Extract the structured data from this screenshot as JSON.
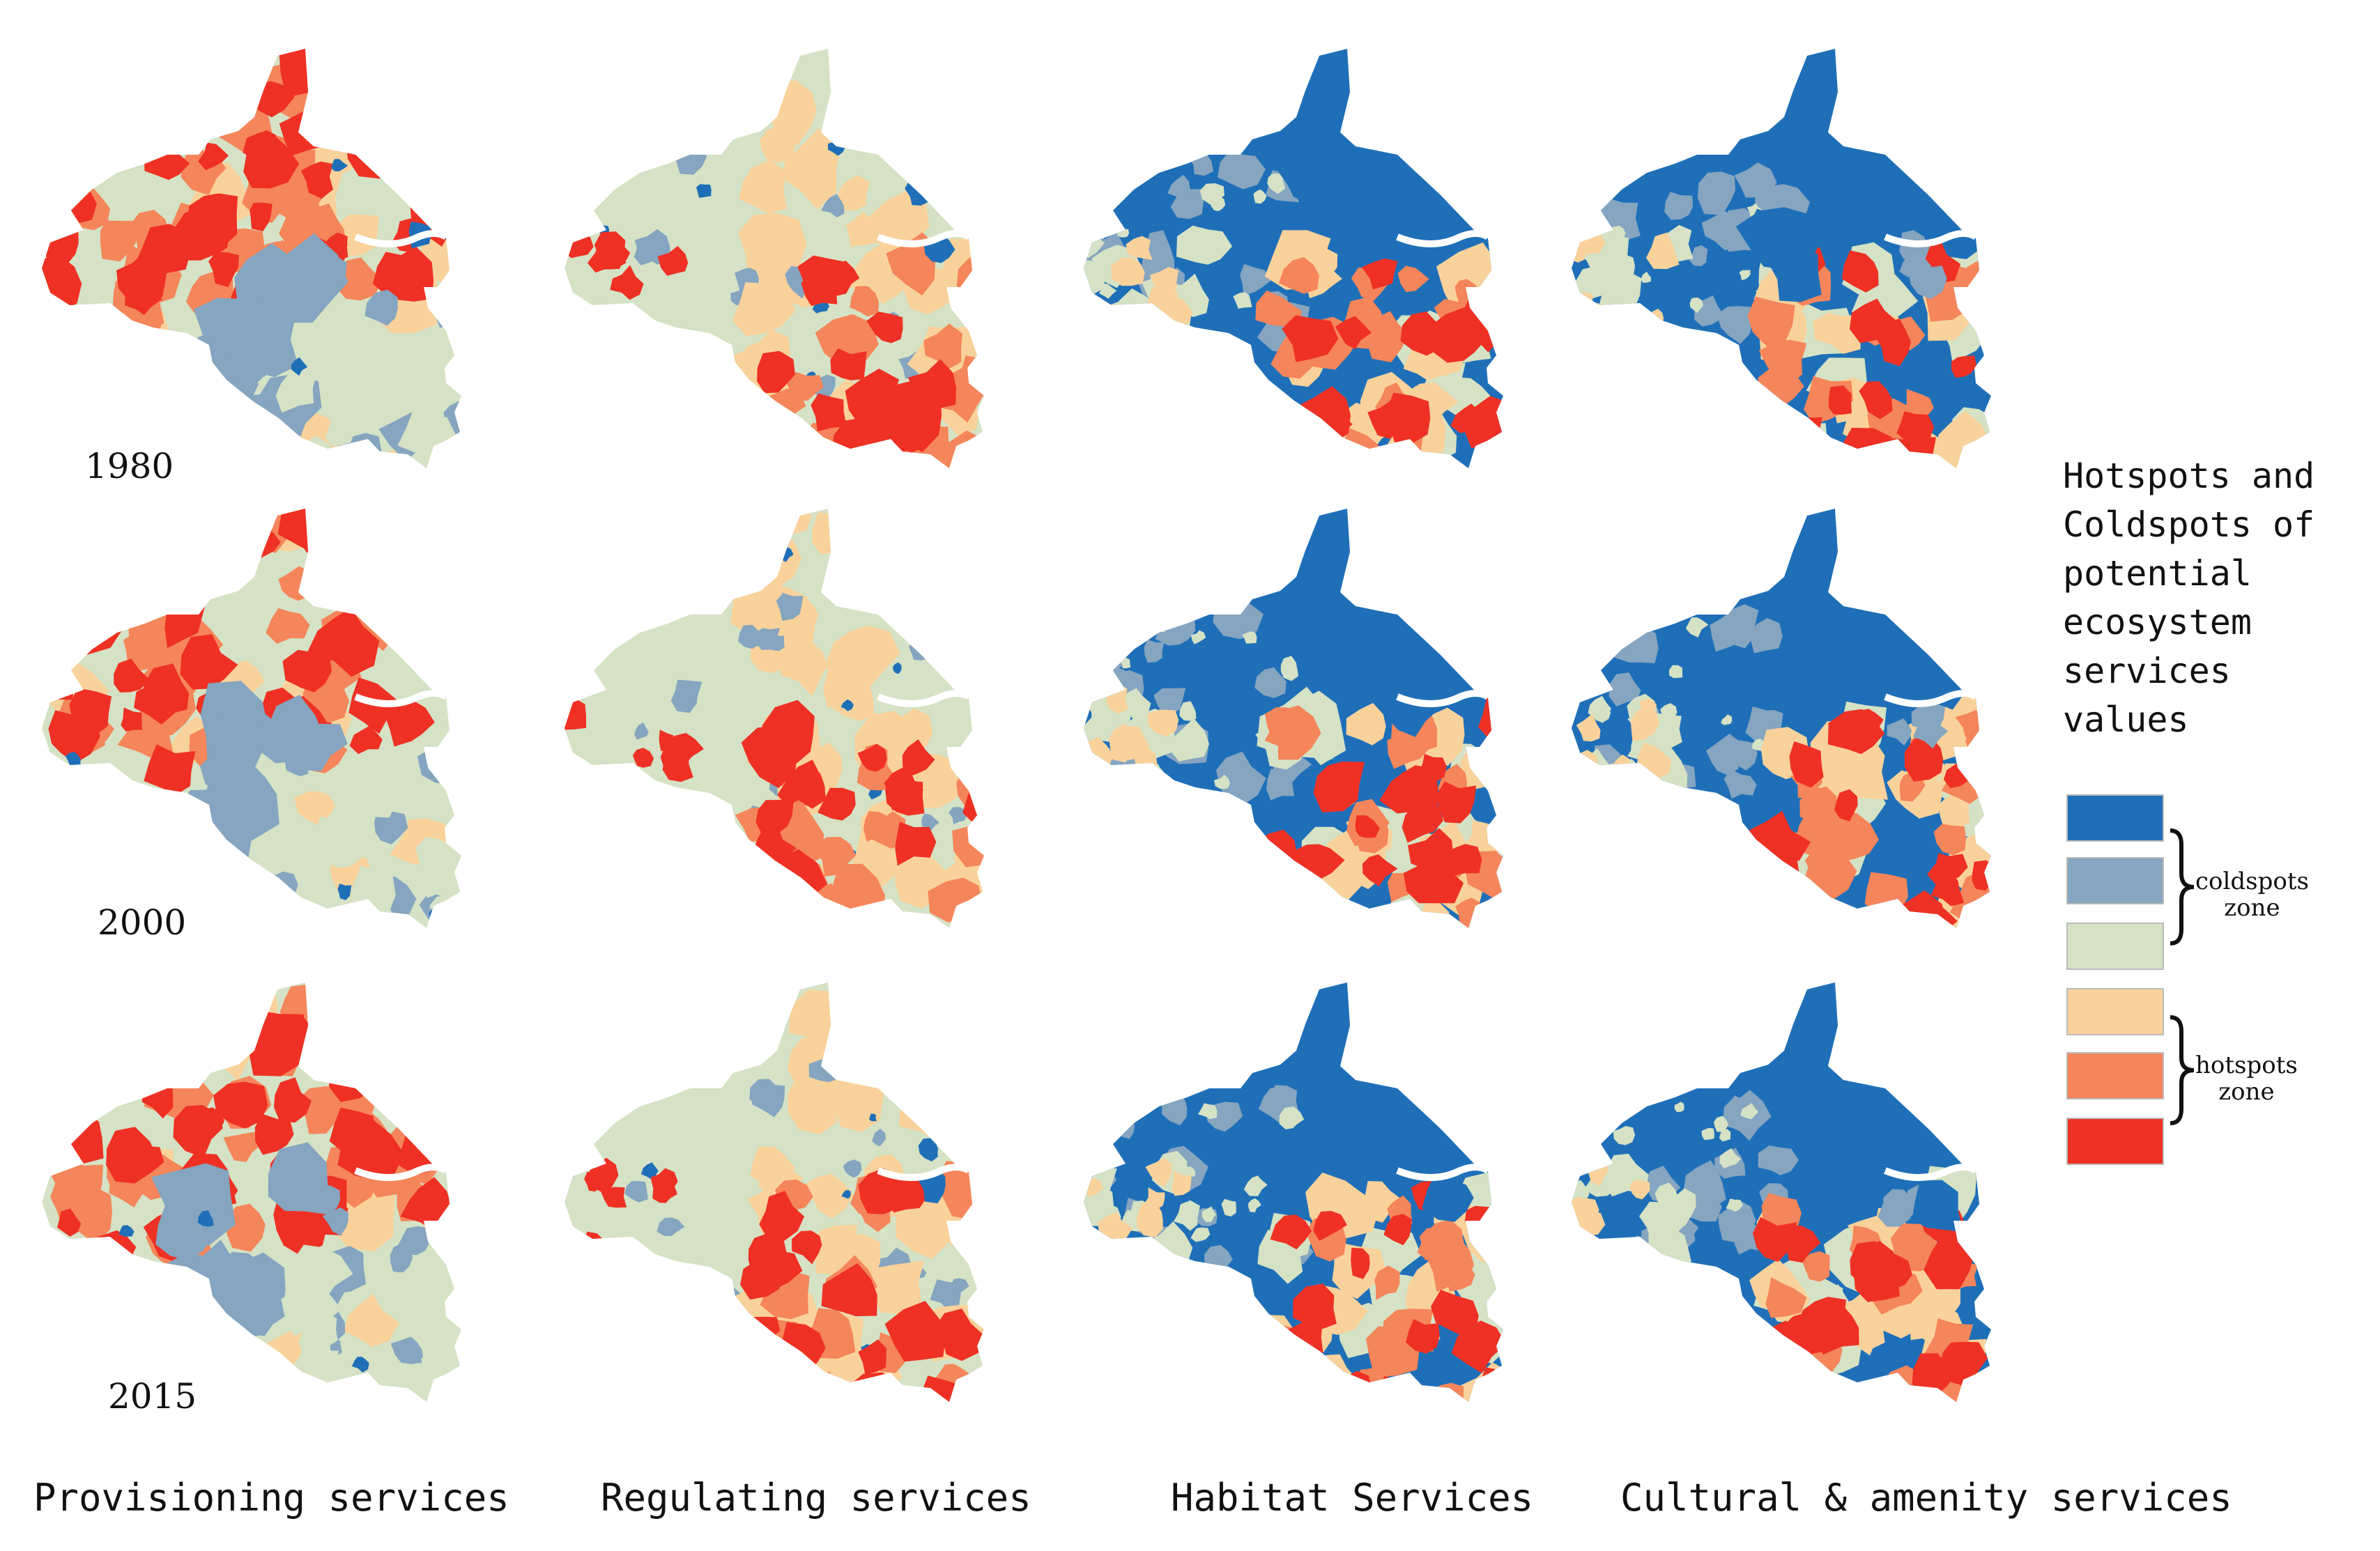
{
  "years": [
    "1980",
    "2000",
    "2015"
  ],
  "columns": [
    {
      "label": "Provisioning services",
      "scheme": "provisioning"
    },
    {
      "label": "Regulating services",
      "scheme": "regulating"
    },
    {
      "label": "Habitat Services",
      "scheme": "habitat"
    },
    {
      "label": "Cultural & amenity services",
      "scheme": "cultural"
    }
  ],
  "legend": {
    "title_lines": [
      "Hotspots and",
      "Coldspots of",
      "potential",
      "ecosystem",
      "services",
      "values"
    ],
    "classes": [
      {
        "color": "#1f6fb8",
        "zone": "coldspots"
      },
      {
        "color": "#85a5c0",
        "zone": "coldspots"
      },
      {
        "color": "#d5e2c5",
        "zone": "coldspots"
      },
      {
        "color": "#f9d29b",
        "zone": "hotspots"
      },
      {
        "color": "#f5855a",
        "zone": "hotspots"
      },
      {
        "color": "#ee3124",
        "zone": "hotspots"
      }
    ],
    "coldspots_label": [
      "coldspots",
      "zone"
    ],
    "hotspots_label": [
      "hotspots",
      "zone"
    ]
  }
}
